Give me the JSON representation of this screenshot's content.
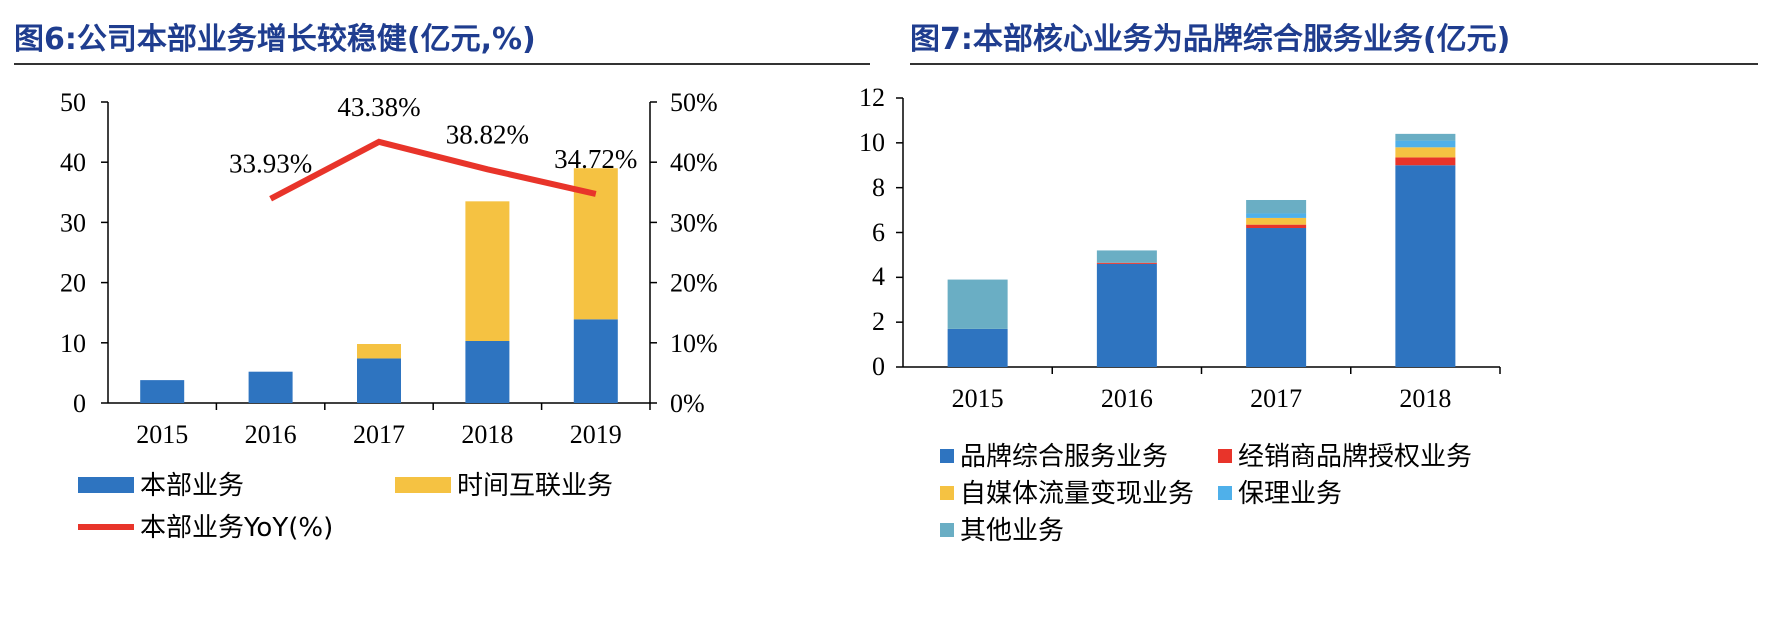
{
  "fig6": {
    "title": "图6:公司本部业务增长较稳健(亿元,%)",
    "chart_data": {
      "type": "bar",
      "stacked": true,
      "title": "图6:公司本部业务增长较稳健(亿元,%)",
      "categories": [
        "2015",
        "2016",
        "2017",
        "2018",
        "2019"
      ],
      "series": [
        {
          "name": "本部业务",
          "color": "#2e74c0",
          "values": [
            3.8,
            5.2,
            7.4,
            10.3,
            13.9
          ]
        },
        {
          "name": "时间互联业务",
          "color": "#f5c242",
          "values": [
            0,
            0,
            2.4,
            23.2,
            25.1
          ]
        }
      ],
      "line_series": {
        "name": "本部业务YoY(%)",
        "color": "#e8342a",
        "axis": "right",
        "categories": [
          "2016",
          "2017",
          "2018",
          "2019"
        ],
        "values": [
          33.93,
          43.38,
          38.82,
          34.72
        ],
        "labels": [
          "33.93%",
          "43.38%",
          "38.82%",
          "34.72%"
        ]
      },
      "ylim": [
        0,
        50
      ],
      "y_ticks": [
        "0",
        "10",
        "20",
        "30",
        "40",
        "50"
      ],
      "y2lim": [
        0,
        50
      ],
      "y2_ticks": [
        "0%",
        "10%",
        "20%",
        "30%",
        "40%",
        "50%"
      ],
      "legend": [
        "本部业务",
        "时间互联业务",
        "本部业务YoY(%)"
      ],
      "legend_position": "bottom"
    }
  },
  "fig7": {
    "title": "图7:本部核心业务为品牌综合服务业务(亿元)",
    "chart_data": {
      "type": "bar",
      "stacked": true,
      "title": "图7:本部核心业务为品牌综合服务业务(亿元)",
      "categories": [
        "2015",
        "2016",
        "2017",
        "2018"
      ],
      "series": [
        {
          "name": "品牌综合服务业务",
          "color": "#2e74c0",
          "values": [
            1.7,
            4.6,
            6.2,
            9.0
          ]
        },
        {
          "name": "经销商品牌授权业务",
          "color": "#e8342a",
          "values": [
            0,
            0.05,
            0.15,
            0.35
          ]
        },
        {
          "name": "自媒体流量变现业务",
          "color": "#f5c242",
          "values": [
            0,
            0,
            0.3,
            0.45
          ]
        },
        {
          "name": "保理业务",
          "color": "#4fb0ea",
          "values": [
            0,
            0,
            0.2,
            0.3
          ]
        },
        {
          "name": "其他业务",
          "color": "#6aaec4",
          "values": [
            2.2,
            0.55,
            0.6,
            0.3
          ]
        }
      ],
      "ylim": [
        0,
        12
      ],
      "y_ticks": [
        "0",
        "2",
        "4",
        "6",
        "8",
        "10",
        "12"
      ],
      "legend": [
        "品牌综合服务业务",
        "经销商品牌授权业务",
        "自媒体流量变现业务",
        "保理业务",
        "其他业务"
      ],
      "legend_position": "bottom"
    }
  }
}
